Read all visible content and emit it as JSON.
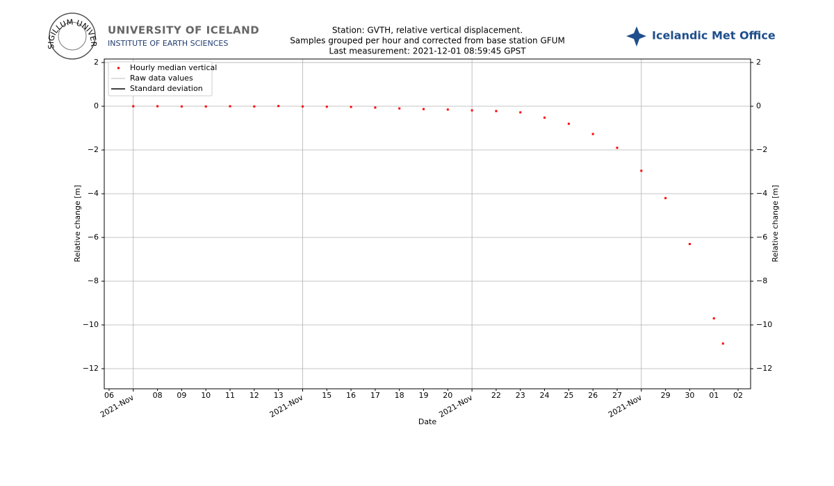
{
  "logos": {
    "seal_text": "SIGILLUM UNIVERSITATIS ISLANDIAE",
    "university": "UNIVERSITY OF ICELAND",
    "institute": "INSTITUTE OF EARTH SCIENCES",
    "met_office": "Icelandic Met Office"
  },
  "chart_data": {
    "type": "scatter",
    "title_lines": [
      "Station: GVTH, relative vertical displacement.",
      "Samples grouped per hour and corrected from base station GFUM",
      "Last measurement: 2021-12-01 08:59:45 GPST"
    ],
    "xlabel": "Date",
    "ylabel": "Relative change [m]",
    "y2label": "Relative change [m]",
    "x": [
      "2021-11-07",
      "2021-11-08",
      "2021-11-09",
      "2021-11-10",
      "2021-11-11",
      "2021-11-12",
      "2021-11-13",
      "2021-11-14",
      "2021-11-15",
      "2021-11-16",
      "2021-11-17",
      "2021-11-18",
      "2021-11-19",
      "2021-11-20",
      "2021-11-21",
      "2021-11-22",
      "2021-11-23",
      "2021-11-24",
      "2021-11-25",
      "2021-11-26",
      "2021-11-27",
      "2021-11-28",
      "2021-11-29",
      "2021-11-30",
      "2021-12-01",
      "2021-12-01 08:59:45"
    ],
    "series": [
      {
        "name": "Hourly median vertical",
        "color": "#ff0000",
        "values": [
          0,
          0,
          -0.01,
          -0.01,
          0,
          -0.01,
          0.01,
          -0.01,
          -0.02,
          -0.03,
          -0.06,
          -0.1,
          -0.13,
          -0.15,
          -0.19,
          -0.22,
          -0.28,
          -0.52,
          -0.8,
          -1.27,
          -1.9,
          -2.95,
          -4.2,
          -6.3,
          -9.7,
          -10.85
        ]
      }
    ],
    "extra_legend": [
      {
        "name": "Raw data values",
        "color": "#d3d3d3"
      },
      {
        "name": "Standard deviation",
        "color": "#000000"
      }
    ],
    "legend": "upper left",
    "xlim": [
      "2021-11-05 19:12",
      "2021-12-02 12:24"
    ],
    "xticks": [
      {
        "value": "2021-11-07",
        "label": "2021-Nov"
      },
      {
        "value": "2021-11-14",
        "label": "2021-Nov"
      },
      {
        "value": "2021-11-21",
        "label": "2021-Nov"
      },
      {
        "value": "2021-11-28",
        "label": "2021-Nov"
      }
    ],
    "xminor_ticks": [
      {
        "value": "2021-11-06",
        "label": "06"
      },
      {
        "value": "2021-11-08",
        "label": "08"
      },
      {
        "value": "2021-11-09",
        "label": "09"
      },
      {
        "value": "2021-11-10",
        "label": "10"
      },
      {
        "value": "2021-11-11",
        "label": "11"
      },
      {
        "value": "2021-11-12",
        "label": "12"
      },
      {
        "value": "2021-11-13",
        "label": "13"
      },
      {
        "value": "2021-11-15",
        "label": "15"
      },
      {
        "value": "2021-11-16",
        "label": "16"
      },
      {
        "value": "2021-11-17",
        "label": "17"
      },
      {
        "value": "2021-11-18",
        "label": "18"
      },
      {
        "value": "2021-11-19",
        "label": "19"
      },
      {
        "value": "2021-11-20",
        "label": "20"
      },
      {
        "value": "2021-11-22",
        "label": "22"
      },
      {
        "value": "2021-11-23",
        "label": "23"
      },
      {
        "value": "2021-11-24",
        "label": "24"
      },
      {
        "value": "2021-11-25",
        "label": "25"
      },
      {
        "value": "2021-11-26",
        "label": "26"
      },
      {
        "value": "2021-11-27",
        "label": "27"
      },
      {
        "value": "2021-11-29",
        "label": "29"
      },
      {
        "value": "2021-11-30",
        "label": "30"
      },
      {
        "value": "2021-12-01",
        "label": "01"
      },
      {
        "value": "2021-12-02",
        "label": "02"
      }
    ],
    "ylim": [
      -12.92,
      2.16
    ],
    "yticks": [
      {
        "value": -12,
        "label": "−12"
      },
      {
        "value": -10,
        "label": "−10"
      },
      {
        "value": -8,
        "label": "−8"
      },
      {
        "value": -6,
        "label": "−6"
      },
      {
        "value": -4,
        "label": "−4"
      },
      {
        "value": -2,
        "label": "−2"
      },
      0,
      2
    ],
    "y2lim": [
      -12.92,
      2.16
    ],
    "y2ticks": [
      {
        "value": -12,
        "label": "−12"
      },
      {
        "value": -10,
        "label": "−10"
      },
      {
        "value": -8,
        "label": "−8"
      },
      {
        "value": -6,
        "label": "−6"
      },
      {
        "value": -4,
        "label": "−4"
      },
      {
        "value": -2,
        "label": "−2"
      },
      0,
      2
    ],
    "grid": {
      "x": "major",
      "y": true
    }
  }
}
